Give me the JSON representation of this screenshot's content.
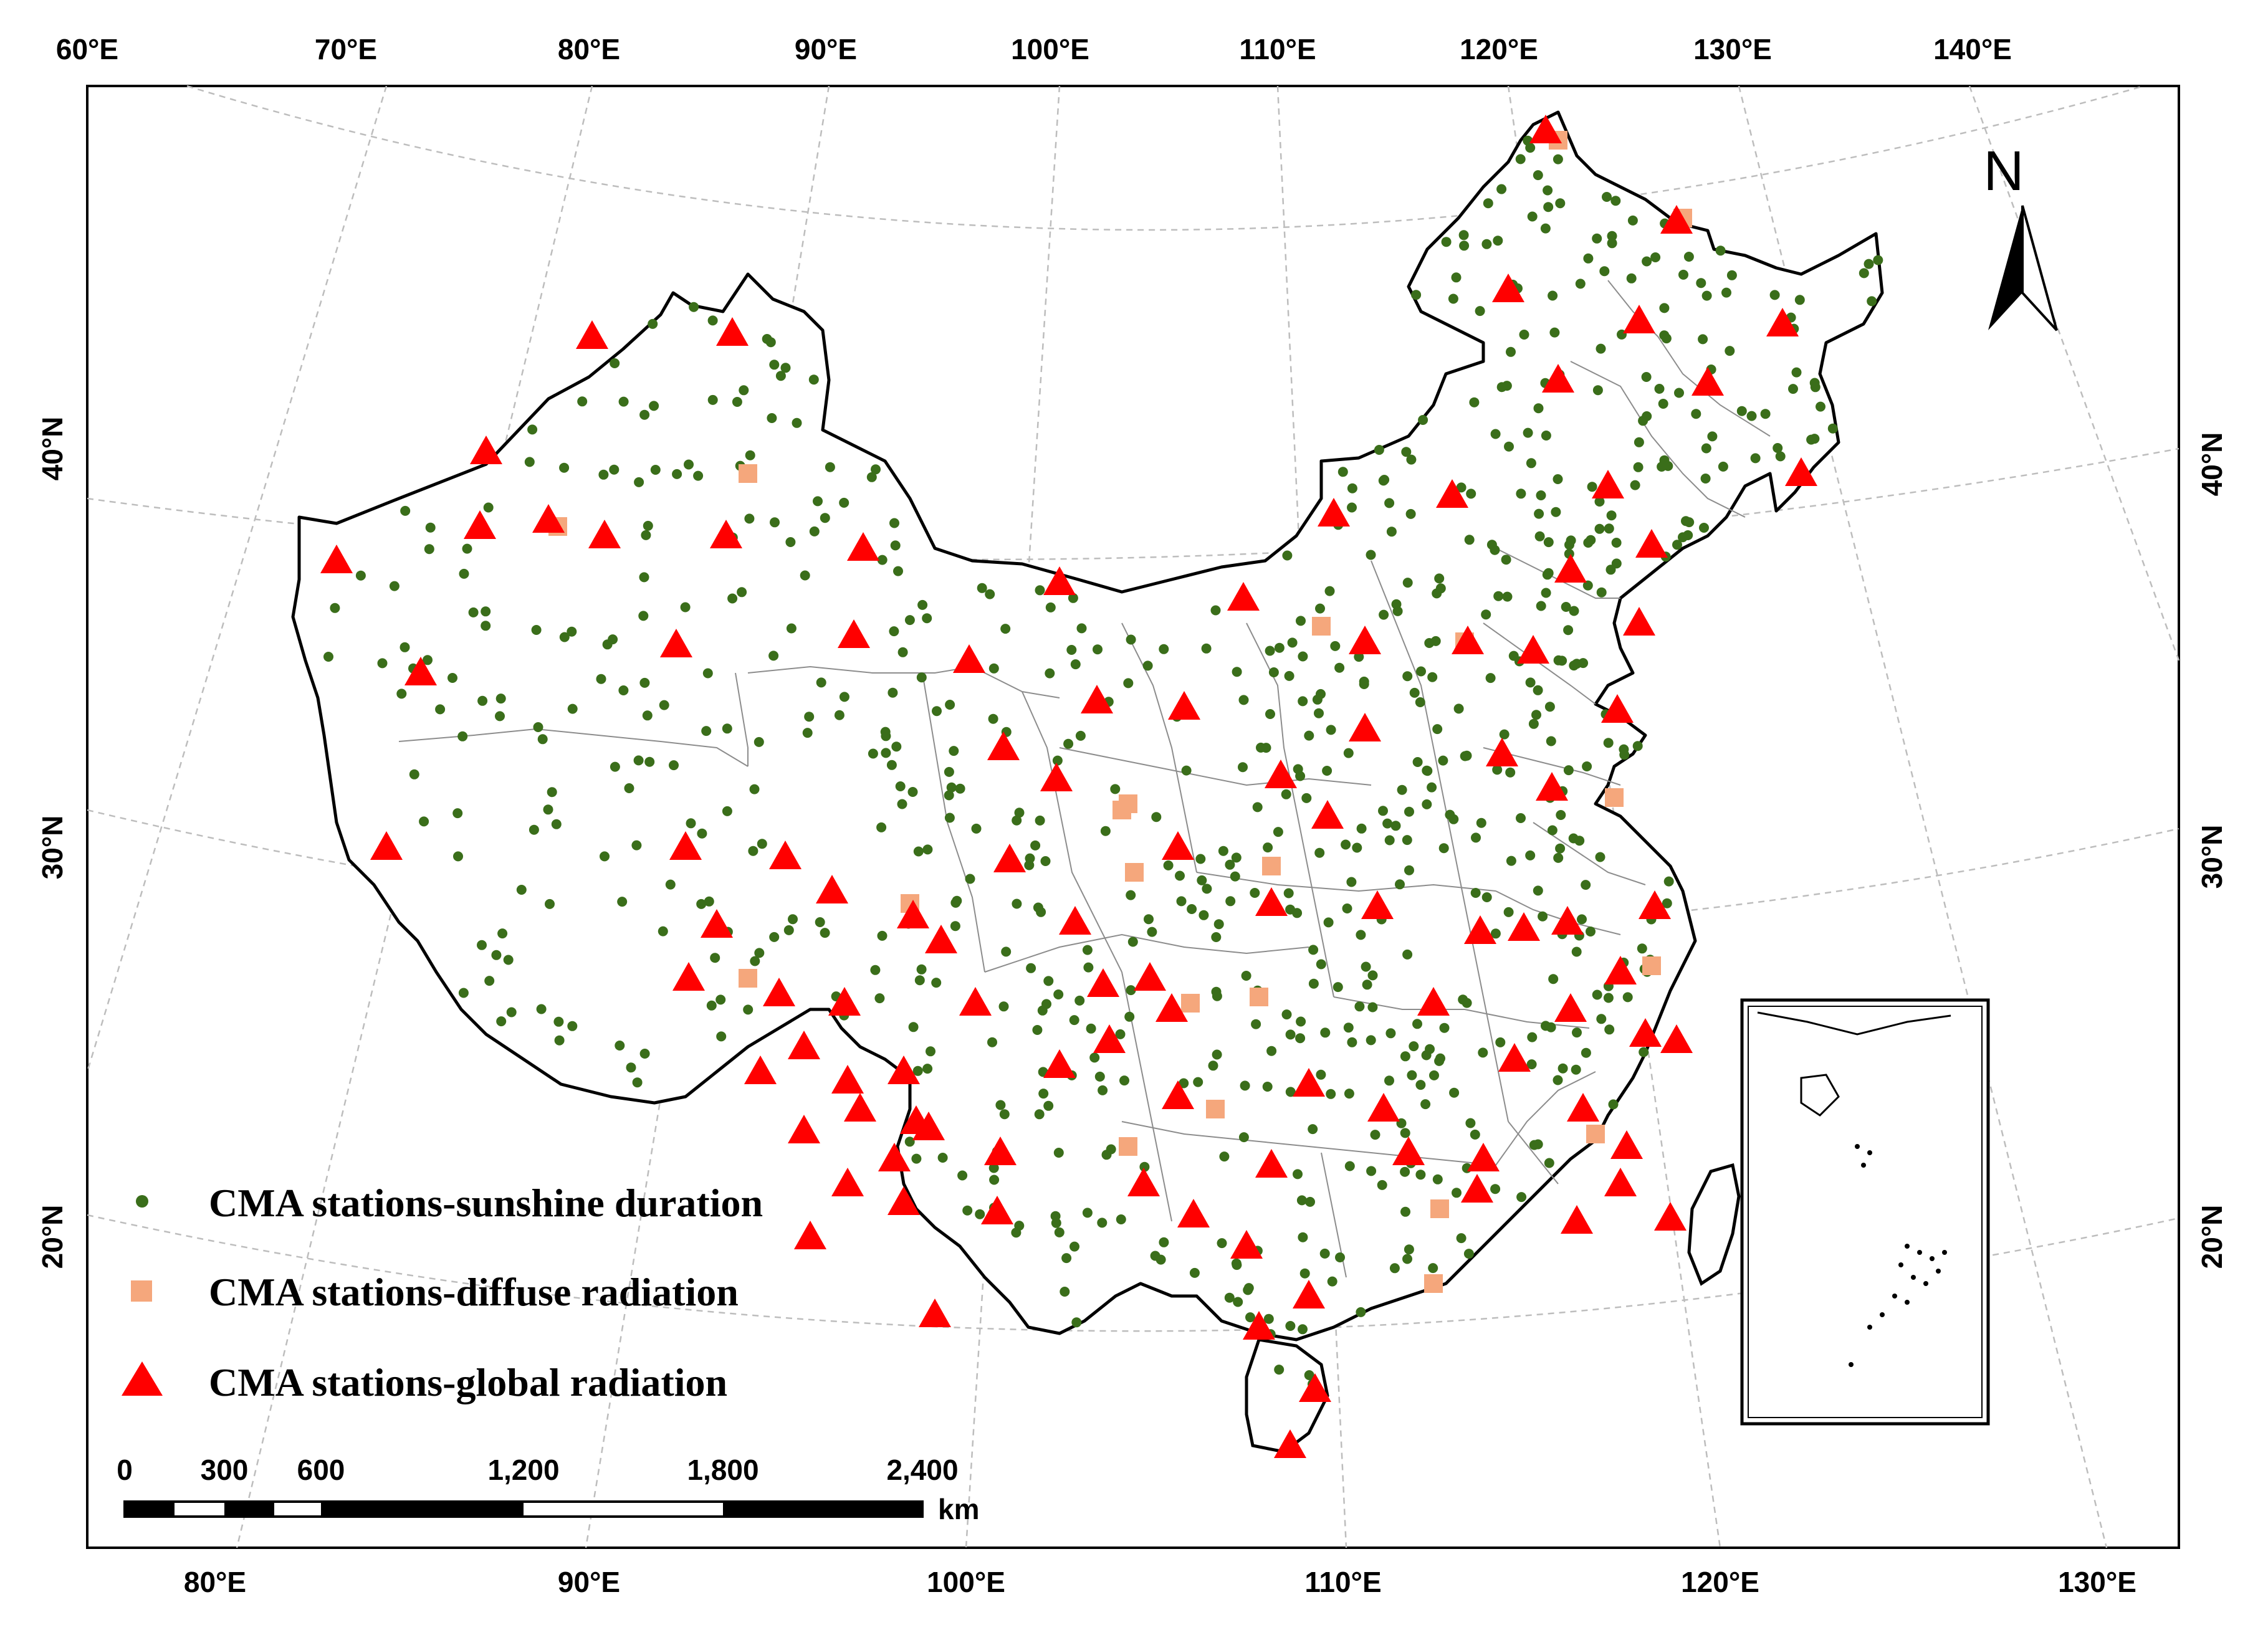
{
  "map": {
    "top_lon_labels": [
      "60°E",
      "70°E",
      "80°E",
      "90°E",
      "100°E",
      "110°E",
      "120°E",
      "130°E",
      "140°E"
    ],
    "bottom_lon_labels": [
      "80°E",
      "90°E",
      "100°E",
      "110°E",
      "120°E",
      "130°E"
    ],
    "left_lat_labels": [
      "40°N",
      "30°N",
      "20°N"
    ],
    "right_lat_labels": [
      "40°N",
      "30°N",
      "20°N"
    ],
    "north_label": "N",
    "scale_bar": {
      "labels": [
        "0",
        "300",
        "600",
        "1,200",
        "1,800",
        "2,400"
      ],
      "unit": "km"
    },
    "legend": [
      {
        "label": "CMA stations-sunshine duration",
        "symbol": "dot",
        "color": "#3a6e1a"
      },
      {
        "label": "CMA stations-diffuse radiation",
        "symbol": "square",
        "color": "#f5a77c"
      },
      {
        "label": "CMA stations-global radiation",
        "symbol": "triangle",
        "color": "#ff0000"
      }
    ],
    "colors": {
      "sunshine": "#3a6e1a",
      "diffuse": "#f5a77c",
      "global": "#ff0000",
      "border": "#000000",
      "province": "#8c8c8c",
      "graticule": "#bdbdbd"
    }
  }
}
